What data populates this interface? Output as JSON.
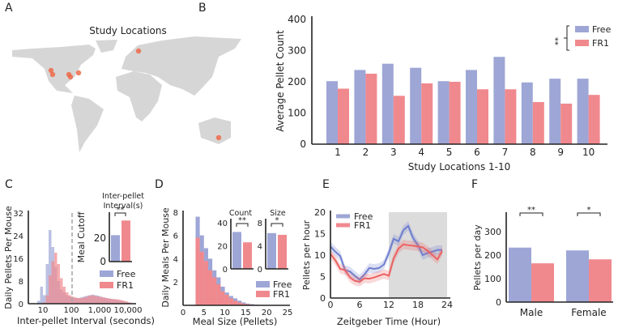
{
  "colors": {
    "free": "#9ea6d6",
    "fr1": "#f0898e",
    "free_line": "#6f7fcf",
    "fr1_line": "#ec6262",
    "map": "#d6d6d6",
    "dot": "#ee6a4a",
    "shade": "#dcdcdc"
  },
  "panel_labels": [
    "A",
    "B",
    "C",
    "D",
    "E",
    "F"
  ],
  "legend": {
    "free": "Free",
    "fr1": "FR1"
  },
  "chart_data": [
    {
      "id": "A",
      "type": "map",
      "title": "Study Locations"
    },
    {
      "id": "B",
      "type": "bar",
      "ylabel": "Average Pellet Count",
      "xlabel": "Study Locations 1-10",
      "categories": [
        "1",
        "2",
        "3",
        "4",
        "5",
        "6",
        "7",
        "8",
        "9",
        "10"
      ],
      "ylim": [
        0,
        400
      ],
      "yticks": [
        "0",
        "100",
        "200",
        "300",
        "400"
      ],
      "series": [
        {
          "name": "Free",
          "values": [
            202,
            238,
            258,
            245,
            202,
            238,
            280,
            198,
            210,
            210
          ]
        },
        {
          "name": "FR1",
          "values": [
            178,
            226,
            155,
            195,
            200,
            176,
            176,
            135,
            130,
            158
          ]
        }
      ],
      "significance": "**",
      "legend_position": "top-right"
    },
    {
      "id": "C",
      "type": "histogram",
      "xscale": "log",
      "xlabel": "Inter-pellet Interval (seconds)",
      "ylabel": "Daily Pellets Per Mouse",
      "yticks": [
        "0",
        "8",
        "16",
        "24",
        "32"
      ],
      "xticks": [
        {
          "v": 10,
          "label": "10"
        },
        {
          "v": 100,
          "label": "100"
        },
        {
          "v": 1000,
          "label": "1,000"
        },
        {
          "v": 10000,
          "label": "10,000"
        }
      ],
      "bin_log10_start": 0.8,
      "bin_log10_width": 0.1,
      "series": [
        {
          "name": "Free",
          "values": [
            1,
            6,
            3,
            14,
            26,
            20,
            13,
            8,
            5,
            4,
            3,
            2.5,
            2.2,
            2,
            2,
            2.2,
            2.5,
            2.8,
            3,
            3.2,
            3,
            2.8,
            2.5,
            2.2,
            2,
            1.8,
            1.6,
            1.5,
            1.3,
            1.1,
            0.8,
            0.5,
            0.3,
            0.1
          ]
        },
        {
          "name": "FR1",
          "values": [
            0,
            0,
            0.5,
            3,
            10,
            15,
            18,
            14,
            9,
            6,
            4,
            3,
            2.5,
            2.2,
            2,
            2,
            2.2,
            2.5,
            2.8,
            3,
            2.8,
            2.6,
            2.4,
            2.2,
            2,
            1.8,
            1.7,
            1.6,
            1.5,
            1.3,
            1.1,
            0.8,
            0.5,
            0.2
          ]
        }
      ],
      "cutoff": {
        "value": 100,
        "label": "Meal Cutoff"
      },
      "inset": {
        "title_lines": [
          "Inter-pellet",
          "Interval(s)"
        ],
        "yticks": [
          "0",
          "20"
        ],
        "values": [
          22.5,
          35
        ],
        "significance": "**"
      }
    },
    {
      "id": "D",
      "type": "histogram",
      "xlabel": "Meal Size (Pellets)",
      "ylabel": "Daily Meals Per Mouse",
      "xticks": [
        "0",
        "5",
        "10",
        "15",
        "20",
        "25"
      ],
      "yticks": [
        "2",
        "4",
        "6",
        "8"
      ],
      "bin_start": 3,
      "series": [
        {
          "name": "Free",
          "values": [
            7.6,
            6,
            4.9,
            4,
            3,
            2.4,
            1.6,
            1.1,
            0.8,
            0.6,
            0.4,
            0.25,
            0.15,
            0.1,
            0.05,
            0.03
          ]
        },
        {
          "name": "FR1",
          "values": [
            5.8,
            4.6,
            3.8,
            3,
            2.4,
            1.8,
            1.2,
            0.9,
            0.6,
            0.4,
            0.25,
            0.15,
            0.1,
            0.05
          ]
        }
      ],
      "insets": [
        {
          "title": "Count",
          "yticks": [
            "0",
            "20",
            "40"
          ],
          "ymax": 40,
          "values": [
            32,
            23
          ],
          "significance": "**"
        },
        {
          "title": "Size",
          "yticks": [
            "0",
            "4",
            "8"
          ],
          "ymax": 8,
          "values": [
            6.2,
            5.9
          ],
          "significance": "*"
        }
      ]
    },
    {
      "id": "E",
      "type": "line",
      "xlabel": "Zeitgeber Time (Hour)",
      "ylabel": "Pellets per hour",
      "xticks": [
        "0",
        "6",
        "12",
        "18",
        "24"
      ],
      "yticks": [
        "0",
        "5",
        "10",
        "15",
        "20"
      ],
      "dark_phase": [
        12,
        24
      ],
      "series": [
        {
          "name": "Free",
          "values": [
            12,
            10.8,
            9.8,
            6.5,
            6.2,
            5.2,
            4.3,
            5.5,
            7,
            6.8,
            7,
            7.8,
            10.5,
            13.8,
            13.2,
            15.8,
            16.8,
            14,
            12.3,
            10,
            10.5,
            10.8,
            11.2,
            11.2
          ]
        },
        {
          "name": "FR1",
          "values": [
            10.3,
            8.8,
            6.8,
            6.5,
            4.8,
            4,
            3.8,
            4.6,
            4.5,
            4.8,
            5.2,
            5.6,
            5.2,
            9.2,
            11.5,
            12.5,
            12.3,
            12.2,
            12,
            11.8,
            11,
            10,
            9,
            11
          ]
        }
      ]
    },
    {
      "id": "F",
      "type": "bar",
      "ylabel": "Pellets per day",
      "categories": [
        "Male",
        "Female"
      ],
      "yticks": [
        "0",
        "100",
        "200",
        "300"
      ],
      "series": [
        {
          "name": "Free",
          "values": [
            232,
            220
          ]
        },
        {
          "name": "FR1",
          "values": [
            165,
            182
          ]
        }
      ],
      "significance": [
        "**",
        "*"
      ]
    }
  ]
}
